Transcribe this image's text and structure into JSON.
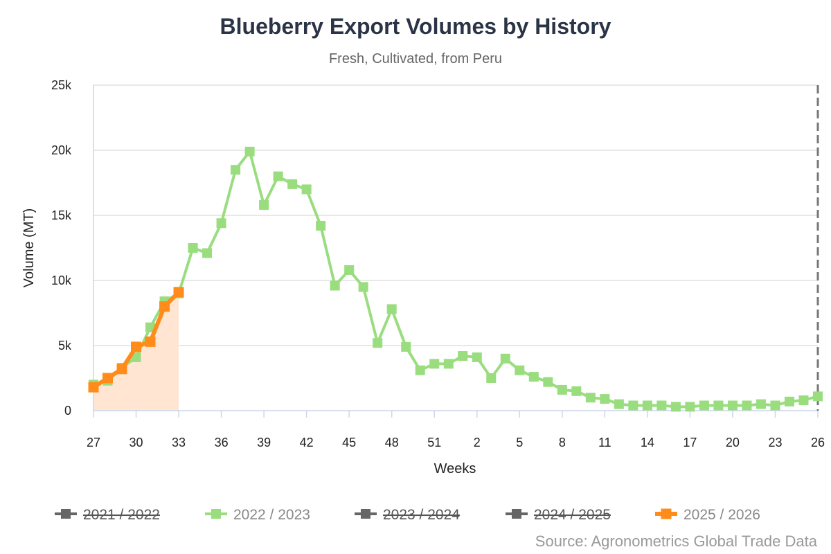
{
  "chart_data": {
    "type": "line",
    "title": "Blueberry Export Volumes by History",
    "subtitle": "Fresh, Cultivated, from Peru",
    "xlabel": "Weeks",
    "ylabel": "Volume (MT)",
    "ylim": [
      0,
      25000
    ],
    "y_ticks": [
      "0",
      "5k",
      "10k",
      "15k",
      "20k",
      "25k"
    ],
    "x_tick_labels": [
      "27",
      "30",
      "33",
      "36",
      "39",
      "42",
      "45",
      "48",
      "51",
      "2",
      "5",
      "8",
      "11",
      "14",
      "17",
      "20",
      "23",
      "26"
    ],
    "weeks": [
      "27",
      "28",
      "29",
      "30",
      "31",
      "32",
      "33",
      "34",
      "35",
      "36",
      "37",
      "38",
      "39",
      "40",
      "41",
      "42",
      "43",
      "44",
      "45",
      "46",
      "47",
      "48",
      "49",
      "50",
      "51",
      "52",
      "1",
      "2",
      "3",
      "4",
      "5",
      "6",
      "7",
      "8",
      "9",
      "10",
      "11",
      "12",
      "13",
      "14",
      "15",
      "16",
      "17",
      "18",
      "19",
      "20",
      "21",
      "22",
      "23",
      "24",
      "25",
      "26"
    ],
    "grid": true,
    "legend_position": "bottom",
    "series": [
      {
        "name": "2021 / 2022",
        "visible": false,
        "color": "#666666",
        "values": []
      },
      {
        "name": "2022 / 2023",
        "visible": true,
        "color": "#99dd7f",
        "values": [
          2000,
          2300,
          3300,
          4100,
          6400,
          8400,
          9000,
          12500,
          12100,
          14400,
          18500,
          19900,
          15800,
          18000,
          17400,
          17000,
          14200,
          9600,
          10800,
          9500,
          5200,
          7800,
          4900,
          3100,
          3600,
          3600,
          4200,
          4100,
          2500,
          4000,
          3100,
          2600,
          2200,
          1600,
          1500,
          1000,
          900,
          500,
          400,
          400,
          400,
          300,
          300,
          400,
          400,
          400,
          400,
          500,
          400,
          700,
          800,
          1100
        ]
      },
      {
        "name": "2023 / 2024",
        "visible": false,
        "color": "#666666",
        "values": []
      },
      {
        "name": "2024 / 2025",
        "visible": false,
        "color": "#666666",
        "values": []
      },
      {
        "name": "2025 / 2026",
        "visible": true,
        "color": "#ff8c1a",
        "area_fill": "#ffe5d2",
        "values": [
          1800,
          2500,
          3200,
          4900,
          5300,
          8000,
          9100
        ]
      }
    ],
    "current_week_marker": "26"
  },
  "source": "Source: Agronometrics Global Trade Data",
  "colors": {
    "grid": "#e0e0e0",
    "axis": "#ccd6eb",
    "title": "#2b3446",
    "hidden_legend": "#666666",
    "marker_line": "#777777"
  }
}
